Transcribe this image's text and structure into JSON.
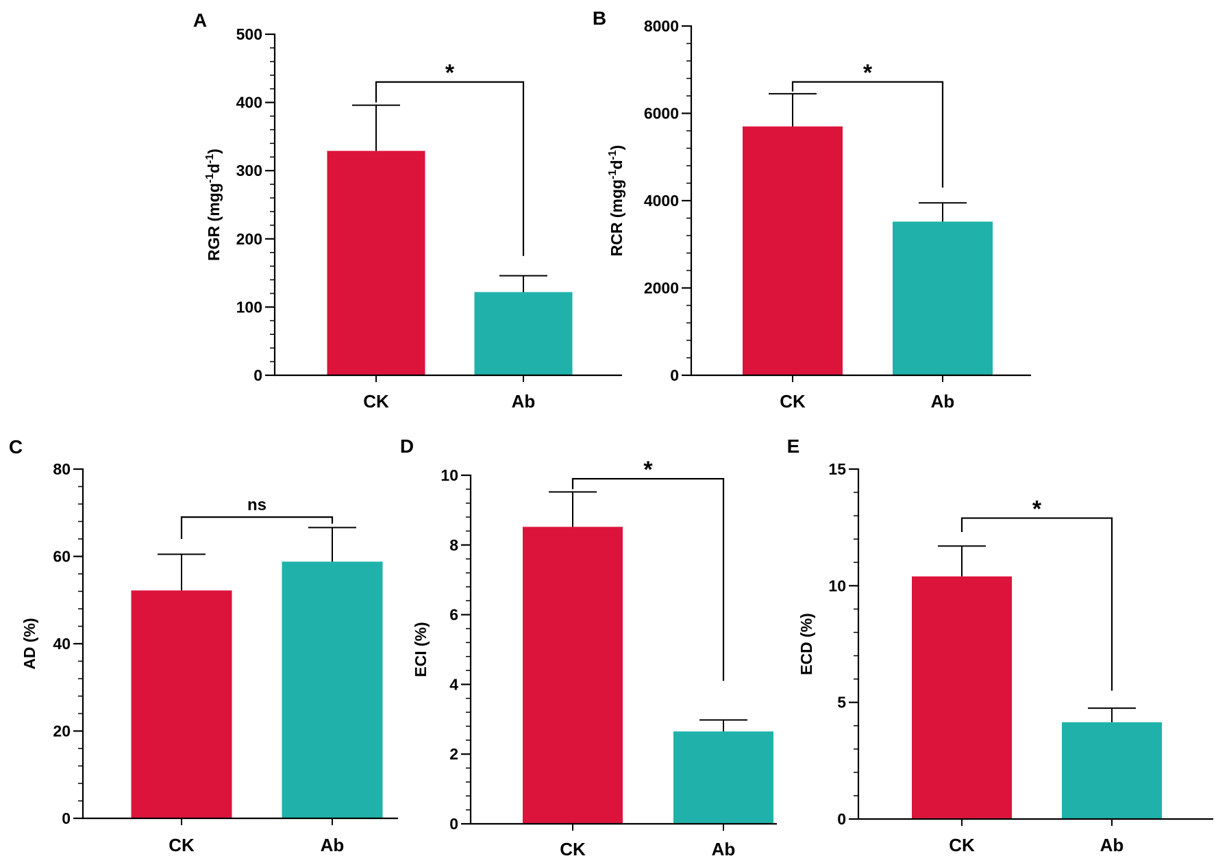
{
  "colors": {
    "CK": "#DC143C",
    "Ab": "#20B2AA",
    "axis": "#000000"
  },
  "chart_data": [
    {
      "panel": "A",
      "type": "bar",
      "categories": [
        "CK",
        "Ab"
      ],
      "values": [
        329,
        122
      ],
      "errors": [
        67,
        24
      ],
      "ylabel_main": "RGR (mgg",
      "ylabel_sup1": "-1",
      "ylabel_mid": "d",
      "ylabel_sup2": "-1",
      "ylabel_end": ")",
      "ylim": [
        0,
        500
      ],
      "yticks": [
        "0",
        "100",
        "200",
        "300",
        "400",
        "500"
      ],
      "ytick_values": [
        0,
        100,
        200,
        300,
        400,
        500
      ],
      "minor_step": 20,
      "sig": "*",
      "bracket_y": 430,
      "bracket_left_end": 400,
      "bracket_right_end": 175
    },
    {
      "panel": "B",
      "type": "bar",
      "categories": [
        "CK",
        "Ab"
      ],
      "values": [
        5700,
        3520
      ],
      "errors": [
        750,
        430
      ],
      "ylabel_main": "RCR (mgg",
      "ylabel_sup1": "-1",
      "ylabel_mid": "d",
      "ylabel_sup2": "-1",
      "ylabel_end": ")",
      "ylim": [
        0,
        8000
      ],
      "yticks": [
        "0",
        "2000",
        "4000",
        "6000",
        "8000"
      ],
      "ytick_values": [
        0,
        2000,
        4000,
        6000,
        8000
      ],
      "minor_step": 400,
      "sig": "*",
      "bracket_y": 6720,
      "bracket_left_end": 6500,
      "bracket_right_end": 4300
    },
    {
      "panel": "C",
      "type": "bar",
      "categories": [
        "CK",
        "Ab"
      ],
      "values": [
        52.2,
        58.8
      ],
      "errors": [
        8.3,
        7.8
      ],
      "ylabel_main": "AD (%)",
      "ylim": [
        0,
        80
      ],
      "yticks": [
        "0",
        "20",
        "40",
        "60",
        "80"
      ],
      "ytick_values": [
        0,
        20,
        40,
        60,
        80
      ],
      "minor_step": 4,
      "sig": "ns",
      "bracket_y": 69,
      "bracket_left_end": 64,
      "bracket_right_end": 67.5
    },
    {
      "panel": "D",
      "type": "bar",
      "categories": [
        "CK",
        "Ab"
      ],
      "values": [
        8.52,
        2.65
      ],
      "errors": [
        1.0,
        0.33
      ],
      "ylabel_main": "ECI (%)",
      "ylim": [
        0,
        10
      ],
      "yticks": [
        "0",
        "2",
        "4",
        "6",
        "8",
        "10"
      ],
      "ytick_values": [
        0,
        2,
        4,
        6,
        8,
        10
      ],
      "minor_step": 0.4,
      "sig": "*",
      "bracket_y": 9.9,
      "bracket_left_end": 9.6,
      "bracket_right_end": 4.1
    },
    {
      "panel": "E",
      "type": "bar",
      "categories": [
        "CK",
        "Ab"
      ],
      "values": [
        10.4,
        4.15
      ],
      "errors": [
        1.3,
        0.6
      ],
      "ylabel_main": "ECD (%)",
      "ylim": [
        0,
        15
      ],
      "yticks": [
        "0",
        "5",
        "10",
        "15"
      ],
      "ytick_values": [
        0,
        5,
        10,
        15
      ],
      "minor_step": 1,
      "sig": "*",
      "bracket_y": 12.9,
      "bracket_left_end": 12.3,
      "bracket_right_end": 5.5
    }
  ]
}
